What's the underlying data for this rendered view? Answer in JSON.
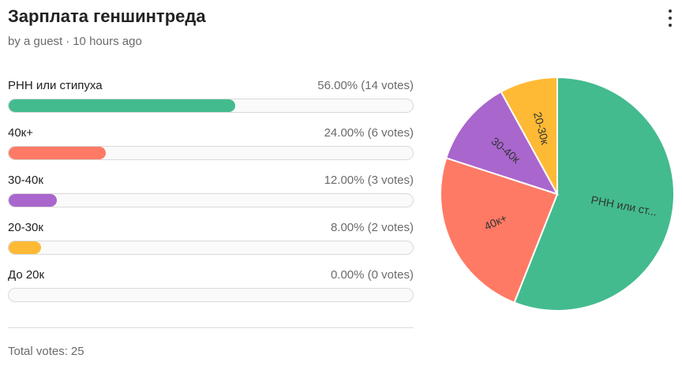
{
  "poll": {
    "title": "Зарплата геншинтреда",
    "author": "by a guest",
    "time": "10 hours ago",
    "total_label": "Total votes:",
    "total_votes": "25"
  },
  "chart_data": {
    "type": "bar",
    "categories": [
      "РНН или стипуха",
      "40к+",
      "30-40к",
      "20-30к",
      "До 20к"
    ],
    "values": [
      14,
      6,
      3,
      2,
      0
    ],
    "percent": [
      56.0,
      24.0,
      12.0,
      8.0,
      0.0
    ],
    "stat_labels": [
      "56.00% (14 votes)",
      "24.00% (6 votes)",
      "12.00% (3 votes)",
      "8.00% (2 votes)",
      "0.00% (0 votes)"
    ],
    "colors": [
      "#43bb8e",
      "#ff7a65",
      "#a966cd",
      "#ffba35",
      "#cccccc"
    ],
    "pie": {
      "type": "pie",
      "labels": [
        "РНН или ст...",
        "40к+",
        "30-40к",
        "20-30к"
      ],
      "values": [
        14,
        6,
        3,
        2
      ],
      "colors": [
        "#43bb8e",
        "#ff7a65",
        "#a966cd",
        "#ffba35"
      ]
    }
  }
}
